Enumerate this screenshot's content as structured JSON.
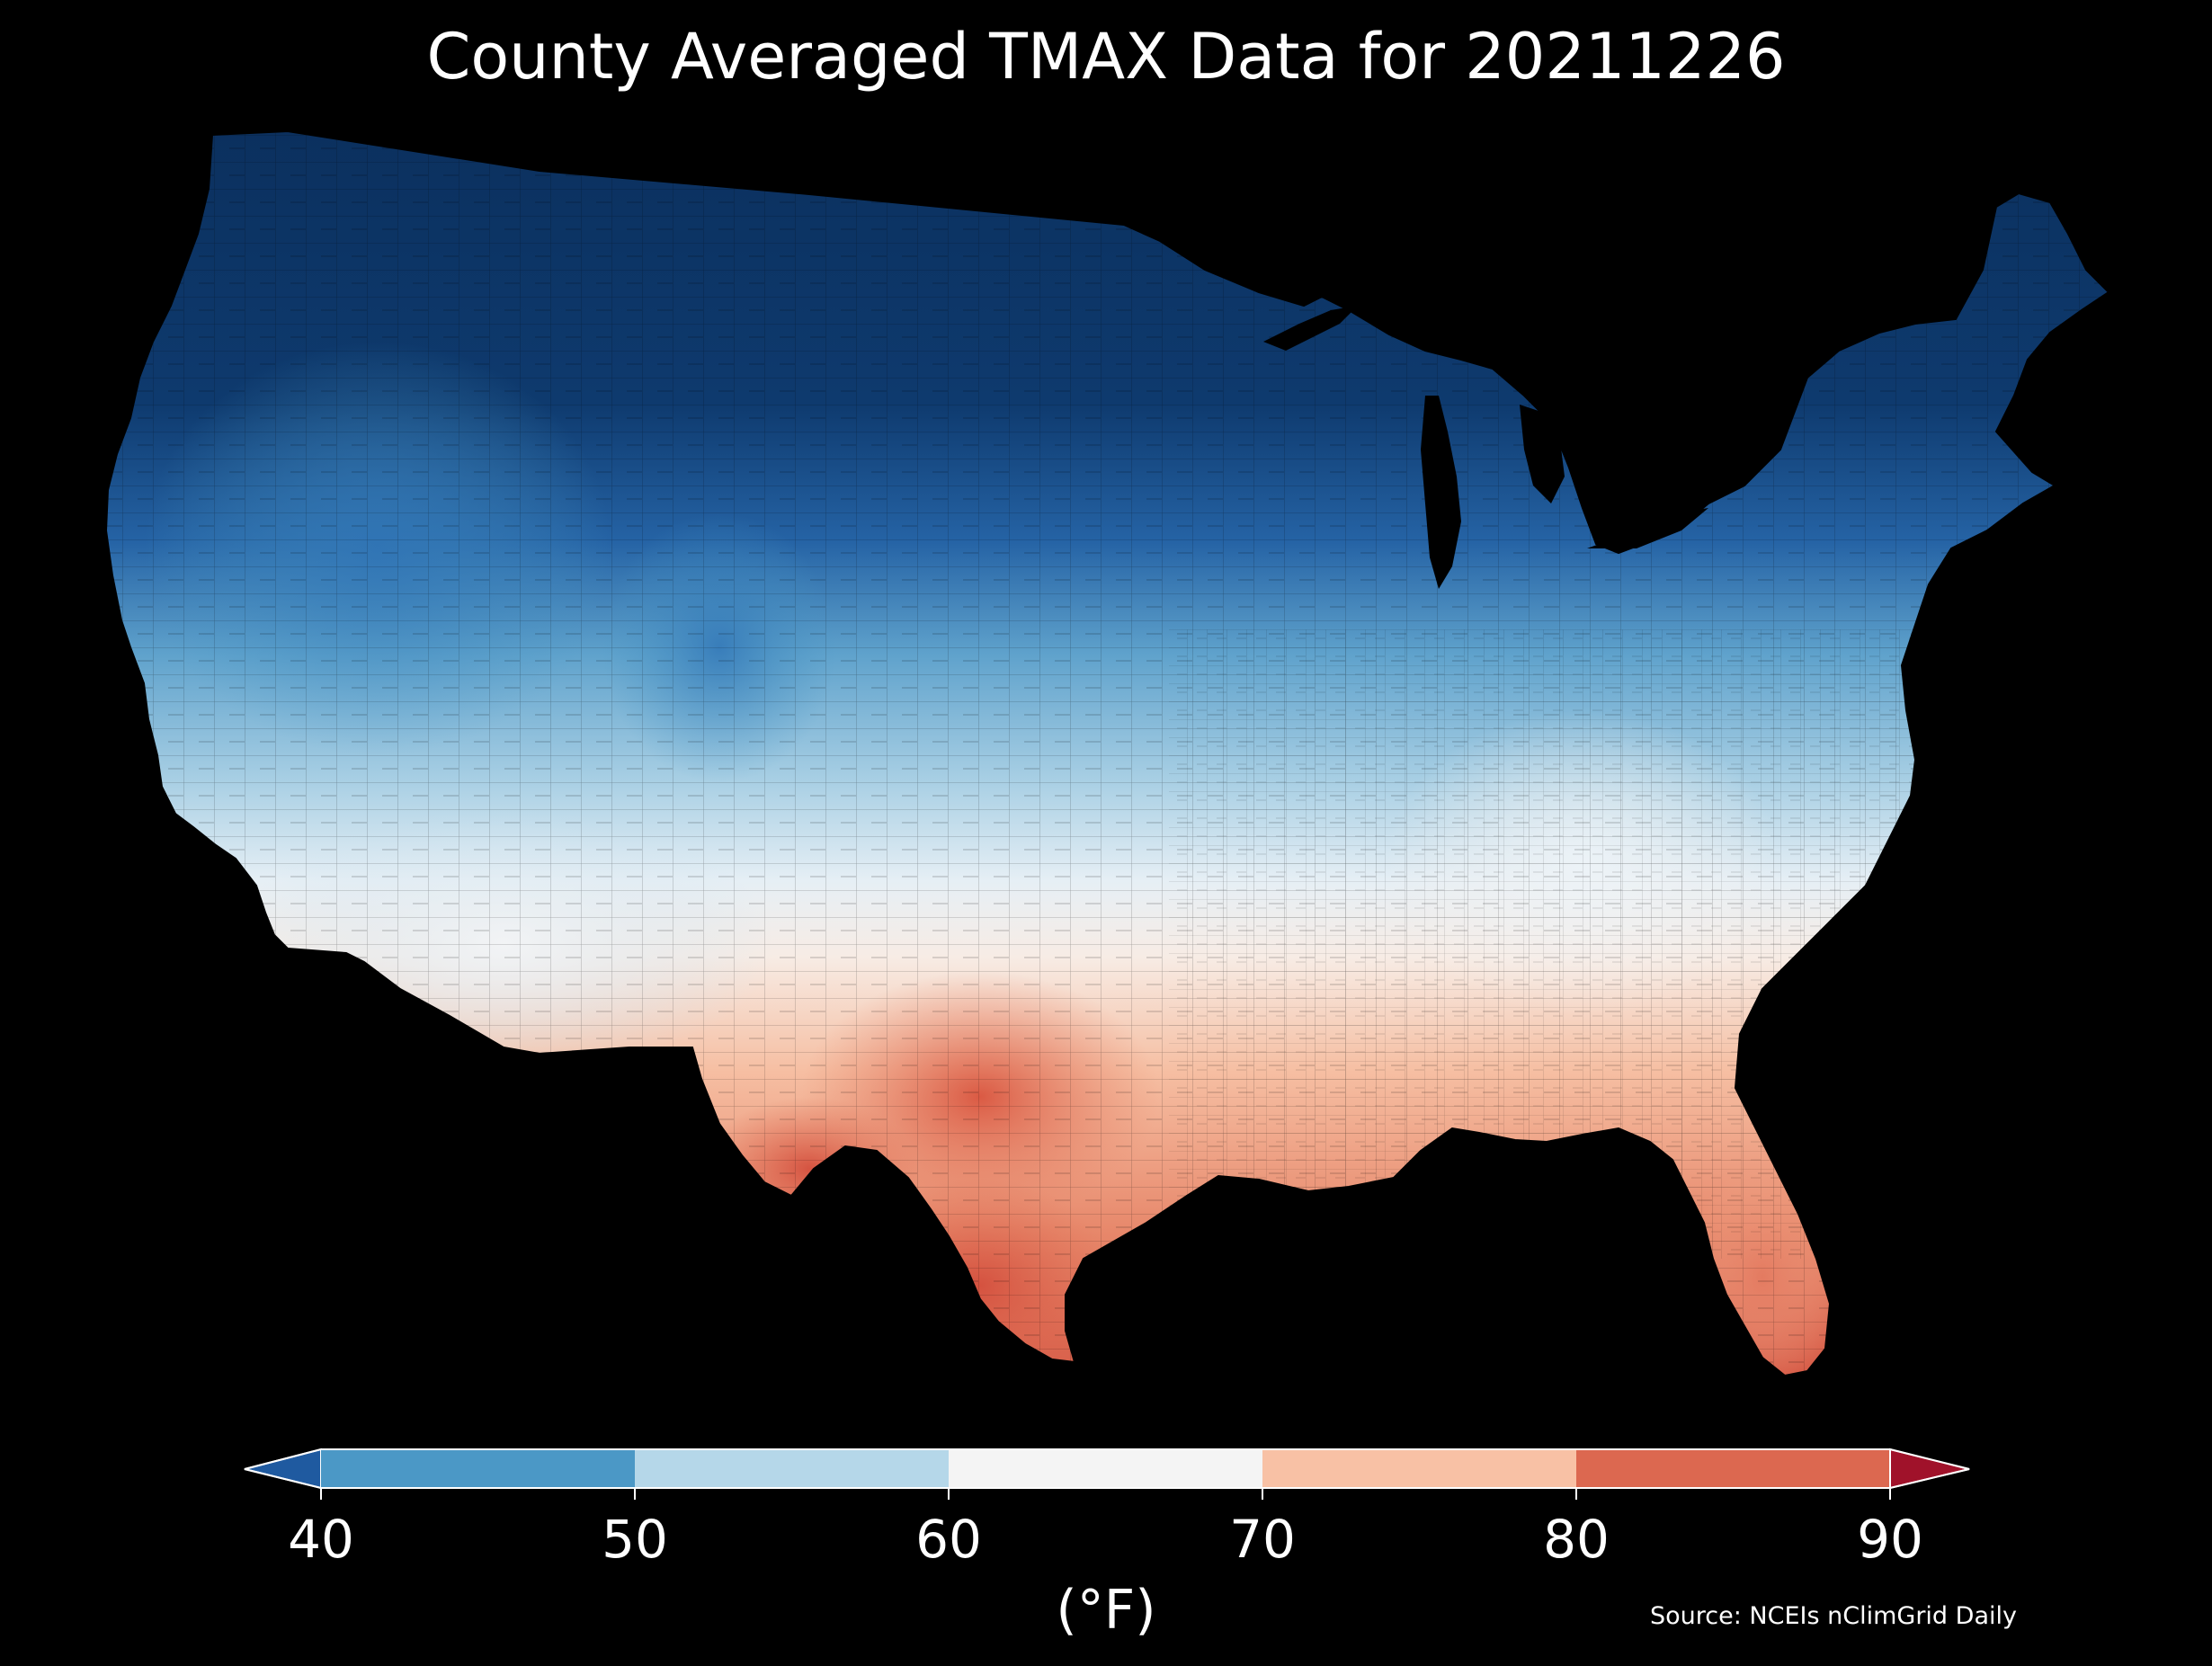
{
  "title": "County Averaged TMAX Data for 20211226",
  "colorbar": {
    "unit_label": "(°F)",
    "ticks": [
      "40",
      "50",
      "60",
      "70",
      "80",
      "90"
    ],
    "extend": "both",
    "bins": [
      {
        "range": "<40",
        "color": "#1f5aa0"
      },
      {
        "range": "40-50",
        "color": "#4b98c6"
      },
      {
        "range": "50-60",
        "color": "#b5d7e9"
      },
      {
        "range": "60-70",
        "color": "#f4f4f4"
      },
      {
        "range": "70-80",
        "color": "#f8c1a5"
      },
      {
        "range": "80-90",
        "color": "#dc6850"
      },
      {
        "range": ">90",
        "color": "#a0122a"
      }
    ]
  },
  "map_regions": [
    {
      "region": "Northern Rockies / Northern Plains / Upper Midwest",
      "tmax_band": "<40",
      "color": "#0e3a6e"
    },
    {
      "region": "Pacific Northwest / Great Basin",
      "tmax_band": "<40 to 40-50",
      "color": "#2f6fb0"
    },
    {
      "region": "Central California / Nevada / Utah",
      "tmax_band": "40-50",
      "color": "#4b98c6"
    },
    {
      "region": "Southern California / Central Plains / Ohio Valley",
      "tmax_band": "50-60",
      "color": "#b5d7e9"
    },
    {
      "region": "Arizona / Appalachians / Mid-Atlantic",
      "tmax_band": "60-70",
      "color": "#f4f4f4"
    },
    {
      "region": "Southeast / Southern Plains",
      "tmax_band": "70-80",
      "color": "#f8c1a5"
    },
    {
      "region": "South Texas / Central Texas / South Florida",
      "tmax_band": "80-90",
      "color": "#dc6850"
    }
  ],
  "source": "Source: NCEIs nClimGrid Daily",
  "background": "#000000"
}
